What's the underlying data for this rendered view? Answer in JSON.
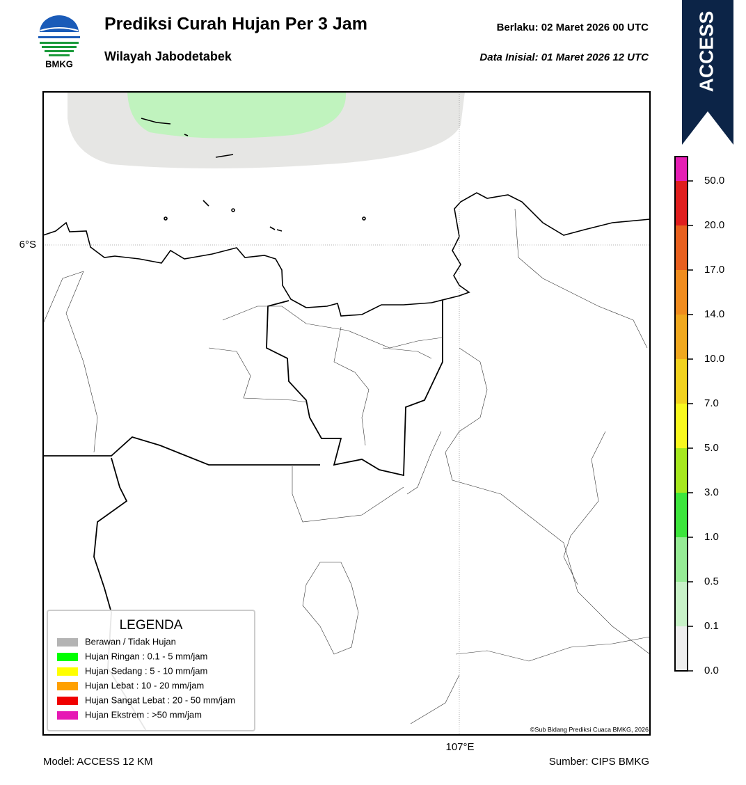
{
  "header": {
    "logo_text": "BMKG",
    "title": "Prediksi Curah Hujan Per 3 Jam",
    "subtitle": "Wilayah Jabodetabek",
    "valid": "Berlaku:  02 Maret 2026 00 UTC",
    "init": "Data Inisial:  01 Maret 2026 12 UTC",
    "model_badge": "ACCESS"
  },
  "map": {
    "lat_label": "6°S",
    "lon_label": "107°E",
    "credit": "©Sub Bidang Prediksi Cuaca BMKG, 2026"
  },
  "legend": {
    "title": "LEGENDA",
    "items": [
      {
        "label": "Berawan / Tidak Hujan",
        "color": "#b4b4b4"
      },
      {
        "label": "Hujan Ringan : 0.1 - 5 mm/jam",
        "color": "#00ff00"
      },
      {
        "label": "Hujan Sedang : 5 - 10 mm/jam",
        "color": "#ffff00"
      },
      {
        "label": "Hujan Lebat : 10 - 20 mm/jam",
        "color": "#ffa000"
      },
      {
        "label": "Hujan Sangat Lebat : 20 - 50 mm/jam",
        "color": "#f00000"
      },
      {
        "label": "Hujan Ekstrem : >50 mm/jam",
        "color": "#e619b4"
      }
    ]
  },
  "colorbar": {
    "ticks": [
      {
        "value": 0,
        "label": "0.0"
      },
      {
        "value": 0.1,
        "label": "0.1"
      },
      {
        "value": 0.5,
        "label": "0.5"
      },
      {
        "value": 1,
        "label": "1.0"
      },
      {
        "value": 3,
        "label": "3.0"
      },
      {
        "value": 5,
        "label": "5.0"
      },
      {
        "value": 7,
        "label": "7.0"
      },
      {
        "value": 10,
        "label": "10.0"
      },
      {
        "value": 14,
        "label": "14.0"
      },
      {
        "value": 17,
        "label": "17.0"
      },
      {
        "value": 20,
        "label": "20.0"
      },
      {
        "value": 50,
        "label": "50.0"
      }
    ],
    "colors": [
      "#eeeeee",
      "#c8f2c8",
      "#96ec96",
      "#3ce63c",
      "#a6e81e",
      "#f8f81e",
      "#f2d21e",
      "#f0a81e",
      "#f08c1e",
      "#e8601e",
      "#e01e1e",
      "#e61eb4"
    ]
  },
  "footer": {
    "model": "Model: ACCESS 12 KM",
    "source": "Sumber: CIPS BMKG"
  }
}
